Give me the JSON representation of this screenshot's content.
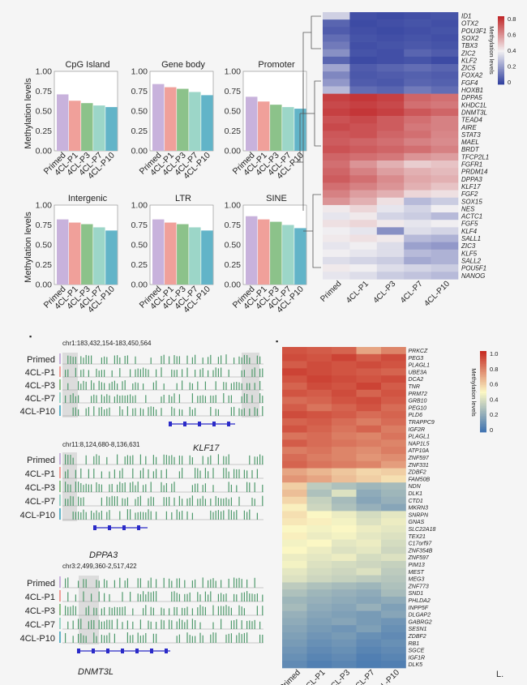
{
  "samples": [
    "Primed",
    "4CL-P1",
    "4CL-P3",
    "4CL-P7",
    "4CL-P10"
  ],
  "colors": {
    "bars": [
      "#c8b2dc",
      "#f0a09a",
      "#8cc28a",
      "#9cd6c8",
      "#62b4c8"
    ],
    "heat_low": "#2a3a9c",
    "heat_mid": "#f2f0f2",
    "heat_high": "#c0282a",
    "heat2_low": "#3a6fb0",
    "heat2_mid": "#fbf7c4",
    "heat2_high": "#c62b22",
    "track": "#4f9a6c",
    "gene": "#2a2ac8"
  },
  "bar_y_ticks": [
    "0.00",
    "0.25",
    "0.50",
    "0.75",
    "1.00"
  ],
  "bar_ylabel": "Methylation levels",
  "chart_data": [
    {
      "type": "bar",
      "title": "CpG Island",
      "categories": [
        "Primed",
        "4CL-P1",
        "4CL-P3",
        "4CL-P7",
        "4CL-P10"
      ],
      "values": [
        0.71,
        0.63,
        0.6,
        0.57,
        0.55
      ],
      "ylim": [
        0,
        1
      ]
    },
    {
      "type": "bar",
      "title": "Gene body",
      "categories": [
        "Primed",
        "4CL-P1",
        "4CL-P3",
        "4CL-P7",
        "4CL-P10"
      ],
      "values": [
        0.84,
        0.8,
        0.78,
        0.74,
        0.7
      ],
      "ylim": [
        0,
        1
      ]
    },
    {
      "type": "bar",
      "title": "Promoter",
      "categories": [
        "Primed",
        "4CL-P1",
        "4CL-P3",
        "4CL-P7",
        "4CL-P10"
      ],
      "values": [
        0.68,
        0.62,
        0.58,
        0.55,
        0.53
      ],
      "ylim": [
        0,
        1
      ]
    },
    {
      "type": "bar",
      "title": "Intergenic",
      "categories": [
        "Primed",
        "4CL-P1",
        "4CL-P3",
        "4CL-P7",
        "4CL-P10"
      ],
      "values": [
        0.82,
        0.78,
        0.76,
        0.72,
        0.68
      ],
      "ylim": [
        0,
        1
      ]
    },
    {
      "type": "bar",
      "title": "LTR",
      "categories": [
        "Primed",
        "4CL-P1",
        "4CL-P3",
        "4CL-P7",
        "4CL-P10"
      ],
      "values": [
        0.82,
        0.78,
        0.76,
        0.72,
        0.68
      ],
      "ylim": [
        0,
        1
      ]
    },
    {
      "type": "bar",
      "title": "SINE",
      "categories": [
        "Primed",
        "4CL-P1",
        "4CL-P3",
        "4CL-P7",
        "4CL-P10"
      ],
      "values": [
        0.86,
        0.82,
        0.79,
        0.75,
        0.71
      ],
      "ylim": [
        0,
        1
      ]
    }
  ],
  "heatmap1": {
    "genes": [
      "ID1",
      "OTX2",
      "POU3F1",
      "SOX2",
      "TBX3",
      "ZIC2",
      "KLF2",
      "ZIC5",
      "FOXA2",
      "FGF4",
      "HOXB1",
      "DPPA5",
      "KHDC1L",
      "DNMT3L",
      "TEAD4",
      "AIRE",
      "STAT3",
      "MAEL",
      "BRDT",
      "TFCP2L1",
      "FGFR1",
      "PRDM14",
      "DPPA3",
      "KLF17",
      "FGF2",
      "SOX15",
      "NES",
      "ACTC1",
      "FGF5",
      "KLF4",
      "SALL1",
      "ZIC3",
      "KLF5",
      "SALL2",
      "POU5F1",
      "NANOG"
    ],
    "values": [
      [
        0.35,
        0.05,
        0.04,
        0.05,
        0.06
      ],
      [
        0.1,
        0.04,
        0.05,
        0.06,
        0.05
      ],
      [
        0.08,
        0.05,
        0.04,
        0.05,
        0.06
      ],
      [
        0.12,
        0.06,
        0.05,
        0.06,
        0.05
      ],
      [
        0.15,
        0.05,
        0.06,
        0.07,
        0.06
      ],
      [
        0.2,
        0.06,
        0.05,
        0.1,
        0.08
      ],
      [
        0.1,
        0.04,
        0.05,
        0.06,
        0.04
      ],
      [
        0.25,
        0.08,
        0.1,
        0.12,
        0.1
      ],
      [
        0.18,
        0.07,
        0.08,
        0.09,
        0.08
      ],
      [
        0.22,
        0.08,
        0.07,
        0.1,
        0.09
      ],
      [
        0.3,
        0.12,
        0.1,
        0.15,
        0.12
      ],
      [
        0.8,
        0.82,
        0.8,
        0.72,
        0.7
      ],
      [
        0.78,
        0.8,
        0.78,
        0.7,
        0.68
      ],
      [
        0.8,
        0.82,
        0.8,
        0.75,
        0.72
      ],
      [
        0.76,
        0.78,
        0.74,
        0.7,
        0.66
      ],
      [
        0.78,
        0.76,
        0.74,
        0.68,
        0.66
      ],
      [
        0.75,
        0.76,
        0.72,
        0.7,
        0.65
      ],
      [
        0.74,
        0.72,
        0.7,
        0.66,
        0.64
      ],
      [
        0.76,
        0.74,
        0.72,
        0.7,
        0.66
      ],
      [
        0.72,
        0.7,
        0.68,
        0.62,
        0.6
      ],
      [
        0.7,
        0.62,
        0.56,
        0.5,
        0.52
      ],
      [
        0.72,
        0.66,
        0.6,
        0.56,
        0.54
      ],
      [
        0.74,
        0.7,
        0.64,
        0.58,
        0.56
      ],
      [
        0.7,
        0.66,
        0.62,
        0.56,
        0.52
      ],
      [
        0.66,
        0.6,
        0.56,
        0.48,
        0.46
      ],
      [
        0.62,
        0.56,
        0.46,
        0.3,
        0.34
      ],
      [
        0.44,
        0.48,
        0.4,
        0.36,
        0.42
      ],
      [
        0.4,
        0.44,
        0.36,
        0.34,
        0.3
      ],
      [
        0.46,
        0.48,
        0.44,
        0.4,
        0.42
      ],
      [
        0.42,
        0.4,
        0.2,
        0.38,
        0.36
      ],
      [
        0.44,
        0.46,
        0.44,
        0.3,
        0.28
      ],
      [
        0.4,
        0.42,
        0.38,
        0.24,
        0.22
      ],
      [
        0.42,
        0.4,
        0.38,
        0.3,
        0.28
      ],
      [
        0.38,
        0.36,
        0.34,
        0.26,
        0.28
      ],
      [
        0.44,
        0.42,
        0.38,
        0.36,
        0.34
      ],
      [
        0.4,
        0.38,
        0.34,
        0.32,
        0.3
      ]
    ],
    "legend_title": "Methylation levels",
    "legend_ticks": [
      "0.8",
      "0.6",
      "0.4",
      "0.2",
      "0"
    ]
  },
  "tracks": [
    {
      "coord": "chr1:183,432,154-183,450,564",
      "gene": "KLF17"
    },
    {
      "coord": "chr11:8,124,680-8,136,631",
      "gene": "DPPA3"
    },
    {
      "coord": "chr3:2,499,360-2,517,422",
      "gene": "DNMT3L"
    }
  ],
  "heatmap2": {
    "genes": [
      "PRKCZ",
      "PEG3",
      "PLAGL1",
      "UBE3A",
      "DCA2",
      "TNR",
      "PRM72",
      "GRB10",
      "PEG10",
      "PLD6",
      "TRAPPC9",
      "IGF2R",
      "PLAGL1",
      "NAP1L5",
      "ATP10A",
      "ZNF597",
      "ZNF331",
      "ZDBF2",
      "FAM50B",
      "NDN",
      "DLK1",
      "CTD1",
      "MKRN3",
      "SNRPN",
      "GNAS",
      "SLC22A18",
      "TEX21",
      "C17orf97",
      "ZNF354B",
      "ZNF597",
      "PIM13",
      "MEST",
      "MEG3",
      "ZNF773",
      "SND1",
      "PHLDA2",
      "INPP5F",
      "DLGAP2",
      "GABRG2",
      "SESN1",
      "ZDBF2",
      "RB1",
      "SGCE",
      "IGF1R",
      "DLK5"
    ],
    "values": [
      [
        0.9,
        0.88,
        0.86,
        0.7,
        0.78
      ],
      [
        0.92,
        0.9,
        0.94,
        0.88,
        0.92
      ],
      [
        0.88,
        0.92,
        0.9,
        0.92,
        0.9
      ],
      [
        0.94,
        0.92,
        0.9,
        0.88,
        0.86
      ],
      [
        0.9,
        0.94,
        0.92,
        0.9,
        0.92
      ],
      [
        0.86,
        0.92,
        0.9,
        0.94,
        0.88
      ],
      [
        0.9,
        0.88,
        0.92,
        0.86,
        0.9
      ],
      [
        0.84,
        0.86,
        0.9,
        0.92,
        0.88
      ],
      [
        0.88,
        0.82,
        0.86,
        0.9,
        0.84
      ],
      [
        0.92,
        0.9,
        0.88,
        0.84,
        0.86
      ],
      [
        0.86,
        0.88,
        0.84,
        0.8,
        0.84
      ],
      [
        0.9,
        0.86,
        0.82,
        0.86,
        0.8
      ],
      [
        0.82,
        0.84,
        0.8,
        0.78,
        0.82
      ],
      [
        0.88,
        0.84,
        0.82,
        0.8,
        0.78
      ],
      [
        0.8,
        0.82,
        0.78,
        0.76,
        0.8
      ],
      [
        0.84,
        0.8,
        0.78,
        0.74,
        0.76
      ],
      [
        0.86,
        0.82,
        0.8,
        0.78,
        0.72
      ],
      [
        0.7,
        0.66,
        0.62,
        0.58,
        0.6
      ],
      [
        0.74,
        0.7,
        0.64,
        0.6,
        0.56
      ],
      [
        0.6,
        0.34,
        0.3,
        0.26,
        0.28
      ],
      [
        0.64,
        0.3,
        0.42,
        0.22,
        0.26
      ],
      [
        0.58,
        0.36,
        0.28,
        0.2,
        0.24
      ],
      [
        0.52,
        0.38,
        0.3,
        0.24,
        0.2
      ],
      [
        0.56,
        0.5,
        0.46,
        0.4,
        0.44
      ],
      [
        0.54,
        0.52,
        0.48,
        0.42,
        0.46
      ],
      [
        0.5,
        0.48,
        0.5,
        0.46,
        0.44
      ],
      [
        0.52,
        0.46,
        0.48,
        0.44,
        0.42
      ],
      [
        0.48,
        0.5,
        0.44,
        0.46,
        0.4
      ],
      [
        0.5,
        0.46,
        0.42,
        0.44,
        0.38
      ],
      [
        0.46,
        0.44,
        0.46,
        0.4,
        0.42
      ],
      [
        0.48,
        0.42,
        0.4,
        0.38,
        0.36
      ],
      [
        0.44,
        0.4,
        0.38,
        0.42,
        0.34
      ],
      [
        0.42,
        0.38,
        0.36,
        0.34,
        0.32
      ],
      [
        0.34,
        0.3,
        0.28,
        0.26,
        0.3
      ],
      [
        0.3,
        0.26,
        0.24,
        0.22,
        0.28
      ],
      [
        0.26,
        0.24,
        0.22,
        0.2,
        0.22
      ],
      [
        0.28,
        0.22,
        0.2,
        0.24,
        0.18
      ],
      [
        0.24,
        0.2,
        0.18,
        0.16,
        0.2
      ],
      [
        0.22,
        0.18,
        0.2,
        0.16,
        0.14
      ],
      [
        0.2,
        0.16,
        0.14,
        0.18,
        0.12
      ],
      [
        0.18,
        0.14,
        0.16,
        0.12,
        0.1
      ],
      [
        0.16,
        0.12,
        0.14,
        0.1,
        0.12
      ],
      [
        0.14,
        0.1,
        0.12,
        0.08,
        0.1
      ],
      [
        0.12,
        0.08,
        0.1,
        0.06,
        0.08
      ],
      [
        0.1,
        0.06,
        0.08,
        0.05,
        0.06
      ]
    ],
    "legend_title": "Methylation levels",
    "legend_ticks": [
      "1.0",
      "0.8",
      "0.6",
      "0.4",
      "0.2",
      "0"
    ]
  },
  "corner_mark": "L."
}
